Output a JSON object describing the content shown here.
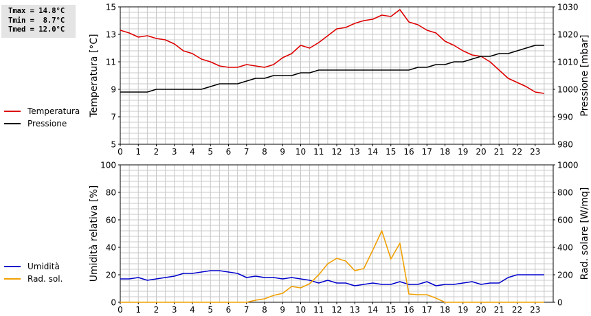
{
  "stats": {
    "lines": [
      "Tmax = 14.8°C",
      "Tmin =  8.7°C",
      "Tmed = 12.0°C"
    ]
  },
  "legend_top": [
    {
      "name": "Temperatura",
      "color": "#dd0000"
    },
    {
      "name": "Pressione",
      "color": "#000000"
    }
  ],
  "legend_bottom": [
    {
      "name": "Umidità",
      "color": "#0000cc"
    },
    {
      "name": "Rad. sol.",
      "color": "#f0a000"
    }
  ],
  "chart_data": [
    {
      "type": "line",
      "ylabel": "Temperatura [°C]",
      "y2label": "Pressione [mbar]",
      "xlim": [
        0,
        24
      ],
      "ylim": [
        5,
        15
      ],
      "y2lim": [
        980,
        1030
      ],
      "xticks": [
        "0",
        "1",
        "2",
        "3",
        "4",
        "5",
        "6",
        "7",
        "8",
        "9",
        "10",
        "11",
        "12",
        "13",
        "14",
        "15",
        "16",
        "17",
        "18",
        "19",
        "20",
        "21",
        "22",
        "23"
      ],
      "yticks": [
        5,
        7,
        9,
        11,
        13,
        15
      ],
      "y2ticks": [
        980,
        990,
        1000,
        1010,
        1020,
        1030
      ],
      "grid": true,
      "series": [
        {
          "name": "Temperatura",
          "axis": "left",
          "color": "#dd0000",
          "x": [
            0,
            0.5,
            1,
            1.5,
            2,
            2.5,
            3,
            3.5,
            4,
            4.5,
            5,
            5.5,
            6,
            6.5,
            7,
            7.5,
            8,
            8.5,
            9,
            9.5,
            10,
            10.5,
            11,
            11.5,
            12,
            12.5,
            13,
            13.5,
            14,
            14.5,
            15,
            15.5,
            16,
            16.5,
            17,
            17.5,
            18,
            18.5,
            19,
            19.5,
            20,
            20.5,
            21,
            21.5,
            22,
            22.5,
            23,
            23.5
          ],
          "y": [
            13.3,
            13.1,
            12.8,
            12.9,
            12.7,
            12.6,
            12.3,
            11.8,
            11.6,
            11.2,
            11.0,
            10.7,
            10.6,
            10.6,
            10.8,
            10.7,
            10.6,
            10.8,
            11.3,
            11.6,
            12.2,
            12.0,
            12.4,
            12.9,
            13.4,
            13.5,
            13.8,
            14.0,
            14.1,
            14.4,
            14.3,
            14.8,
            13.9,
            13.7,
            13.3,
            13.1,
            12.5,
            12.2,
            11.8,
            11.5,
            11.4,
            11.0,
            10.4,
            9.8,
            9.5,
            9.2,
            8.8,
            8.7
          ]
        },
        {
          "name": "Pressione",
          "axis": "right",
          "color": "#000000",
          "x": [
            0,
            0.5,
            1,
            1.5,
            2,
            2.5,
            3,
            3.5,
            4,
            4.5,
            5,
            5.5,
            6,
            6.5,
            7,
            7.5,
            8,
            8.5,
            9,
            9.5,
            10,
            10.5,
            11,
            11.5,
            12,
            12.5,
            13,
            13.5,
            14,
            14.5,
            15,
            15.5,
            16,
            16.5,
            17,
            17.5,
            18,
            18.5,
            19,
            19.5,
            20,
            20.5,
            21,
            21.5,
            22,
            22.5,
            23,
            23.5
          ],
          "y": [
            999,
            999,
            999,
            999,
            1000,
            1000,
            1000,
            1000,
            1000,
            1000,
            1001,
            1002,
            1002,
            1002,
            1003,
            1004,
            1004,
            1005,
            1005,
            1005,
            1006,
            1006,
            1007,
            1007,
            1007,
            1007,
            1007,
            1007,
            1007,
            1007,
            1007,
            1007,
            1007,
            1008,
            1008,
            1009,
            1009,
            1010,
            1010,
            1011,
            1012,
            1012,
            1013,
            1013,
            1014,
            1015,
            1016,
            1016
          ]
        }
      ]
    },
    {
      "type": "line",
      "ylabel": "Umidità relativa [%]",
      "y2label": "Rad. solare [W/mq]",
      "xlim": [
        0,
        24
      ],
      "ylim": [
        0,
        100
      ],
      "y2lim": [
        0,
        1000
      ],
      "xticks": [
        "0",
        "1",
        "2",
        "3",
        "4",
        "5",
        "6",
        "7",
        "8",
        "9",
        "10",
        "11",
        "12",
        "13",
        "14",
        "15",
        "16",
        "17",
        "18",
        "19",
        "20",
        "21",
        "22",
        "23"
      ],
      "yticks": [
        0,
        20,
        40,
        60,
        80,
        100
      ],
      "y2ticks": [
        0,
        200,
        400,
        600,
        800,
        1000
      ],
      "grid": true,
      "series": [
        {
          "name": "Umidità",
          "axis": "left",
          "color": "#0000cc",
          "x": [
            0,
            0.5,
            1,
            1.5,
            2,
            2.5,
            3,
            3.5,
            4,
            4.5,
            5,
            5.5,
            6,
            6.5,
            7,
            7.5,
            8,
            8.5,
            9,
            9.5,
            10,
            10.5,
            11,
            11.5,
            12,
            12.5,
            13,
            13.5,
            14,
            14.5,
            15,
            15.5,
            16,
            16.5,
            17,
            17.5,
            18,
            18.5,
            19,
            19.5,
            20,
            20.5,
            21,
            21.5,
            22,
            22.5,
            23,
            23.5
          ],
          "y": [
            17,
            17,
            18,
            16,
            17,
            18,
            19,
            21,
            21,
            22,
            23,
            23,
            22,
            21,
            18,
            19,
            18,
            18,
            17,
            18,
            17,
            16,
            14,
            16,
            14,
            14,
            12,
            13,
            14,
            13,
            13,
            15,
            13,
            13,
            15,
            12,
            13,
            13,
            14,
            15,
            13,
            14,
            14,
            18,
            20,
            20,
            20,
            20
          ]
        },
        {
          "name": "Rad. sol.",
          "axis": "right",
          "color": "#f0a000",
          "x": [
            0,
            0.5,
            1,
            1.5,
            2,
            2.5,
            3,
            3.5,
            4,
            4.5,
            5,
            5.5,
            6,
            6.5,
            7,
            7.5,
            8,
            8.5,
            9,
            9.5,
            10,
            10.5,
            11,
            11.5,
            12,
            12.5,
            13,
            13.5,
            14,
            14.5,
            15,
            15.5,
            16,
            16.5,
            17,
            17.5,
            18,
            18.5,
            19,
            19.5,
            20,
            20.5,
            21,
            21.5,
            22,
            22.5,
            23,
            23.5
          ],
          "y": [
            0,
            0,
            0,
            0,
            0,
            0,
            0,
            0,
            0,
            0,
            0,
            0,
            0,
            0,
            0,
            15,
            25,
            50,
            65,
            115,
            105,
            135,
            200,
            280,
            320,
            300,
            230,
            245,
            380,
            520,
            315,
            430,
            60,
            55,
            55,
            30,
            0,
            0,
            0,
            0,
            0,
            0,
            0,
            0,
            0,
            0,
            0,
            0
          ]
        }
      ]
    }
  ]
}
